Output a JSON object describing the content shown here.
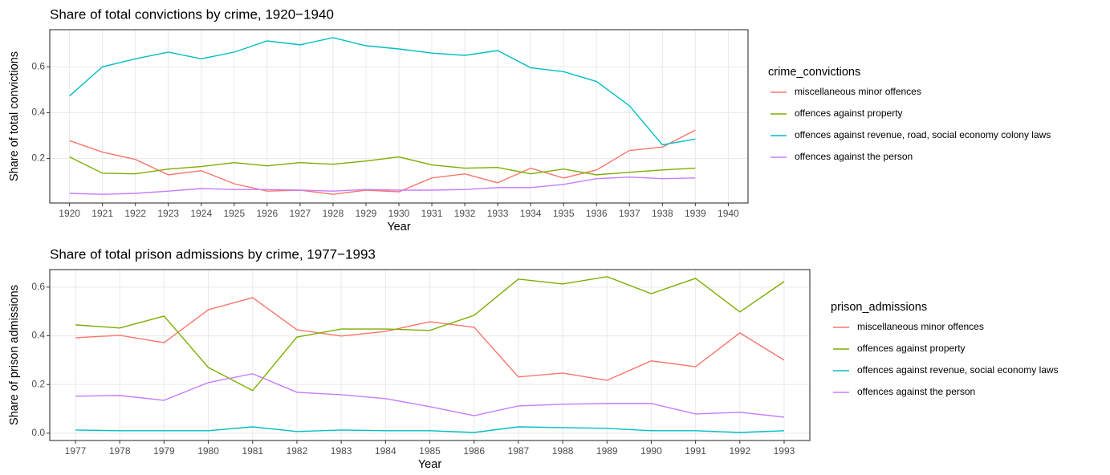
{
  "chart_data": [
    {
      "type": "line",
      "title": "Share of total convictions by crime, 1920−1940",
      "xlabel": "Year",
      "ylabel": "Share of total convictions",
      "legend_title": "crime_convictions",
      "legend": "right",
      "grid": true,
      "x": [
        1920,
        1921,
        1922,
        1923,
        1924,
        1925,
        1926,
        1927,
        1928,
        1929,
        1930,
        1931,
        1932,
        1933,
        1934,
        1935,
        1936,
        1937,
        1938,
        1939
      ],
      "series": [
        {
          "name": "miscellaneous minor offences",
          "color": "#F8766D",
          "values": [
            0.278,
            0.228,
            0.196,
            0.129,
            0.147,
            0.09,
            0.058,
            0.062,
            0.044,
            0.062,
            0.055,
            0.115,
            0.133,
            0.094,
            0.158,
            0.115,
            0.15,
            0.235,
            0.25,
            0.324
          ]
        },
        {
          "name": "offences against property",
          "color": "#7CAE00",
          "values": [
            0.207,
            0.136,
            0.133,
            0.154,
            0.165,
            0.182,
            0.168,
            0.182,
            0.175,
            0.189,
            0.207,
            0.172,
            0.158,
            0.161,
            0.133,
            0.154,
            0.129,
            0.14,
            0.15,
            0.158
          ]
        },
        {
          "name": "offences against revenue, road, social economy colony laws",
          "color": "#00BFC4",
          "values": [
            0.473,
            0.6,
            0.635,
            0.664,
            0.635,
            0.664,
            0.713,
            0.696,
            0.727,
            0.692,
            0.678,
            0.66,
            0.65,
            0.671,
            0.596,
            0.579,
            0.536,
            0.43,
            0.26,
            0.285
          ]
        },
        {
          "name": "offences against the person",
          "color": "#C77CFF",
          "values": [
            0.048,
            0.044,
            0.048,
            0.058,
            0.069,
            0.065,
            0.065,
            0.062,
            0.058,
            0.065,
            0.062,
            0.062,
            0.065,
            0.073,
            0.073,
            0.087,
            0.112,
            0.119,
            0.112,
            0.115
          ]
        }
      ],
      "xlim": [
        1919.4,
        1940.6
      ],
      "ylim": [
        0.006,
        0.762
      ],
      "xticks": [
        1920,
        1921,
        1922,
        1923,
        1924,
        1925,
        1926,
        1927,
        1928,
        1929,
        1930,
        1931,
        1932,
        1933,
        1934,
        1935,
        1936,
        1937,
        1938,
        1939,
        1940
      ],
      "yticks": [
        0.2,
        0.4,
        0.6
      ]
    },
    {
      "type": "line",
      "title": "Share of total prison admissions by crime, 1977−1993",
      "xlabel": "Year",
      "ylabel": "Share of prison admissions",
      "legend_title": "prison_admissions",
      "legend": "right",
      "grid": true,
      "x": [
        1977,
        1978,
        1979,
        1980,
        1981,
        1982,
        1983,
        1984,
        1985,
        1986,
        1987,
        1988,
        1989,
        1990,
        1991,
        1992,
        1993
      ],
      "series": [
        {
          "name": "miscellaneous minor offences",
          "color": "#F8766D",
          "values": [
            0.392,
            0.402,
            0.372,
            0.507,
            0.557,
            0.425,
            0.399,
            0.418,
            0.458,
            0.435,
            0.231,
            0.247,
            0.217,
            0.297,
            0.273,
            0.412,
            0.3
          ]
        },
        {
          "name": "offences against property",
          "color": "#7CAE00",
          "values": [
            0.445,
            0.432,
            0.481,
            0.27,
            0.175,
            0.395,
            0.428,
            0.428,
            0.422,
            0.484,
            0.633,
            0.613,
            0.643,
            0.573,
            0.636,
            0.498,
            0.623
          ]
        },
        {
          "name": "offences against revenue, social economy laws",
          "color": "#00BFC4",
          "values": [
            0.013,
            0.01,
            0.01,
            0.01,
            0.026,
            0.007,
            0.013,
            0.01,
            0.01,
            0.003,
            0.026,
            0.023,
            0.02,
            0.01,
            0.01,
            0.003,
            0.01
          ]
        },
        {
          "name": "offences against the person",
          "color": "#C77CFF",
          "values": [
            0.152,
            0.155,
            0.135,
            0.208,
            0.244,
            0.168,
            0.158,
            0.142,
            0.109,
            0.072,
            0.112,
            0.119,
            0.122,
            0.122,
            0.079,
            0.086,
            0.066
          ]
        }
      ],
      "xlim": [
        1976.42,
        1993.58
      ],
      "ylim": [
        -0.03,
        0.672
      ],
      "xticks": [
        1977,
        1978,
        1979,
        1980,
        1981,
        1982,
        1983,
        1984,
        1985,
        1986,
        1987,
        1988,
        1989,
        1990,
        1991,
        1992,
        1993
      ],
      "yticks": [
        {
          "value": 0,
          "label": "0.0"
        },
        0.2,
        0.4,
        0.6
      ]
    }
  ]
}
